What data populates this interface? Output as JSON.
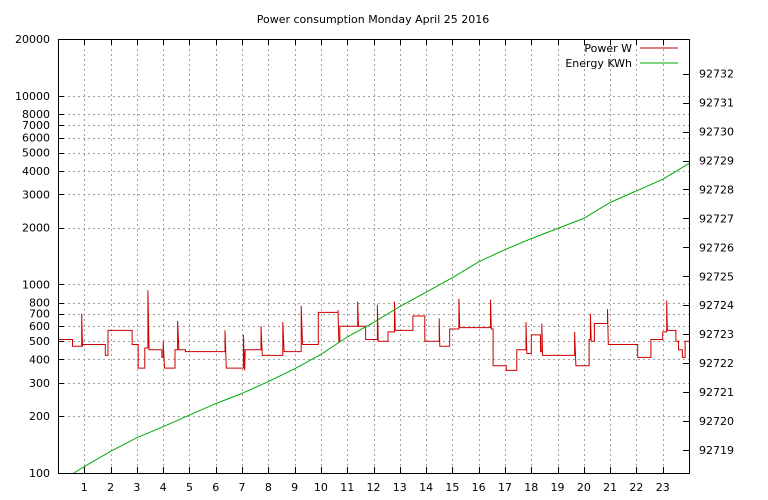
{
  "chart_data": {
    "type": "line",
    "title": "Power consumption Monday April 25 2016",
    "xlabel": "",
    "ylabel": "",
    "y2label": "",
    "grid": true,
    "legend_placement": "top-right",
    "xlim": [
      0,
      24
    ],
    "ylim": [
      100,
      20000
    ],
    "yscale": "log",
    "y2lim": [
      92718.2,
      92733.2
    ],
    "x_ticks": [
      1,
      2,
      3,
      4,
      5,
      6,
      7,
      8,
      9,
      10,
      11,
      12,
      13,
      14,
      15,
      16,
      17,
      18,
      19,
      20,
      21,
      22,
      23
    ],
    "y_ticks": [
      {
        "value": 100,
        "label": "100"
      },
      {
        "value": 200,
        "label": "200"
      },
      {
        "value": 300,
        "label": "300"
      },
      {
        "value": 400,
        "label": "400"
      },
      {
        "value": 500,
        "label": "500"
      },
      {
        "value": 600,
        "label": "600"
      },
      {
        "value": 700,
        "label": "700"
      },
      {
        "value": 800,
        "label": "800"
      },
      {
        "value": 1000,
        "label": "1000"
      },
      {
        "value": 2000,
        "label": "2000"
      },
      {
        "value": 3000,
        "label": "3000"
      },
      {
        "value": 4000,
        "label": "4000"
      },
      {
        "value": 5000,
        "label": "5000"
      },
      {
        "value": 6000,
        "label": "6000"
      },
      {
        "value": 7000,
        "label": "7000"
      },
      {
        "value": 8000,
        "label": "8000"
      },
      {
        "value": 10000,
        "label": "10000"
      },
      {
        "value": 20000,
        "label": "20000"
      }
    ],
    "y2_ticks": [
      92719,
      92720,
      92721,
      92722,
      92723,
      92724,
      92725,
      92726,
      92727,
      92728,
      92729,
      92730,
      92731,
      92732
    ],
    "series": [
      {
        "name": "Power W",
        "axis": "y",
        "color": "#cc0000",
        "points": [
          [
            0,
            510
          ],
          [
            0.55,
            510
          ],
          [
            0.55,
            470
          ],
          [
            0.9,
            470
          ],
          [
            0.9,
            700
          ],
          [
            0.93,
            470
          ],
          [
            0.95,
            480
          ],
          [
            1.8,
            480
          ],
          [
            1.8,
            420
          ],
          [
            1.9,
            420
          ],
          [
            1.9,
            570
          ],
          [
            2.82,
            570
          ],
          [
            2.82,
            480
          ],
          [
            3.05,
            480
          ],
          [
            3.05,
            360
          ],
          [
            3.3,
            360
          ],
          [
            3.3,
            460
          ],
          [
            3.42,
            460
          ],
          [
            3.42,
            930
          ],
          [
            3.46,
            450
          ],
          [
            3.95,
            450
          ],
          [
            3.95,
            410
          ],
          [
            4.0,
            410
          ],
          [
            4.0,
            500
          ],
          [
            4.05,
            360
          ],
          [
            4.45,
            360
          ],
          [
            4.45,
            450
          ],
          [
            4.55,
            450
          ],
          [
            4.55,
            640
          ],
          [
            4.6,
            450
          ],
          [
            4.85,
            450
          ],
          [
            4.85,
            440
          ],
          [
            6.35,
            440
          ],
          [
            6.35,
            570
          ],
          [
            6.4,
            360
          ],
          [
            7.05,
            360
          ],
          [
            7.05,
            540
          ],
          [
            7.1,
            350
          ],
          [
            7.12,
            450
          ],
          [
            7.72,
            450
          ],
          [
            7.72,
            600
          ],
          [
            7.77,
            420
          ],
          [
            8.55,
            420
          ],
          [
            8.55,
            630
          ],
          [
            8.6,
            440
          ],
          [
            9.25,
            440
          ],
          [
            9.25,
            770
          ],
          [
            9.3,
            480
          ],
          [
            9.9,
            480
          ],
          [
            9.9,
            710
          ],
          [
            10.65,
            710
          ],
          [
            10.65,
            730
          ],
          [
            10.68,
            500
          ],
          [
            10.72,
            500
          ],
          [
            10.72,
            600
          ],
          [
            11.4,
            600
          ],
          [
            11.4,
            810
          ],
          [
            11.43,
            600
          ],
          [
            11.7,
            600
          ],
          [
            11.7,
            510
          ],
          [
            12.15,
            510
          ],
          [
            12.15,
            780
          ],
          [
            12.18,
            500
          ],
          [
            12.55,
            500
          ],
          [
            12.55,
            560
          ],
          [
            12.8,
            560
          ],
          [
            12.8,
            810
          ],
          [
            12.83,
            570
          ],
          [
            13.5,
            570
          ],
          [
            13.5,
            680
          ],
          [
            13.95,
            680
          ],
          [
            13.95,
            500
          ],
          [
            14.5,
            500
          ],
          [
            14.5,
            660
          ],
          [
            14.52,
            470
          ],
          [
            14.9,
            470
          ],
          [
            14.9,
            580
          ],
          [
            15.25,
            580
          ],
          [
            15.25,
            840
          ],
          [
            15.28,
            590
          ],
          [
            16.45,
            590
          ],
          [
            16.45,
            830
          ],
          [
            16.48,
            580
          ],
          [
            16.55,
            580
          ],
          [
            16.55,
            370
          ],
          [
            17.05,
            370
          ],
          [
            17.05,
            350
          ],
          [
            17.45,
            350
          ],
          [
            17.45,
            450
          ],
          [
            17.8,
            450
          ],
          [
            17.8,
            630
          ],
          [
            17.83,
            430
          ],
          [
            18.0,
            430
          ],
          [
            18.0,
            540
          ],
          [
            18.35,
            540
          ],
          [
            18.35,
            440
          ],
          [
            18.4,
            440
          ],
          [
            18.4,
            620
          ],
          [
            18.43,
            420
          ],
          [
            19.65,
            420
          ],
          [
            19.65,
            560
          ],
          [
            19.7,
            370
          ],
          [
            20.2,
            370
          ],
          [
            20.2,
            510
          ],
          [
            20.25,
            510
          ],
          [
            20.25,
            700
          ],
          [
            20.28,
            500
          ],
          [
            20.4,
            500
          ],
          [
            20.4,
            620
          ],
          [
            20.9,
            620
          ],
          [
            20.9,
            740
          ],
          [
            20.93,
            480
          ],
          [
            22.05,
            480
          ],
          [
            22.05,
            410
          ],
          [
            22.55,
            410
          ],
          [
            22.55,
            510
          ],
          [
            23.0,
            510
          ],
          [
            23.0,
            560
          ],
          [
            23.15,
            560
          ],
          [
            23.15,
            820
          ],
          [
            23.18,
            570
          ],
          [
            23.5,
            570
          ],
          [
            23.5,
            500
          ],
          [
            23.6,
            500
          ],
          [
            23.6,
            450
          ],
          [
            23.75,
            450
          ],
          [
            23.75,
            410
          ],
          [
            23.85,
            410
          ],
          [
            23.85,
            500
          ],
          [
            24,
            500
          ]
        ]
      },
      {
        "name": "Energy KWh",
        "axis": "y2",
        "color": "#00aa00",
        "points": [
          [
            0.6,
            92718.2
          ],
          [
            1,
            92718.42
          ],
          [
            2,
            92718.95
          ],
          [
            3,
            92719.42
          ],
          [
            4,
            92719.8
          ],
          [
            5,
            92720.2
          ],
          [
            6,
            92720.6
          ],
          [
            7,
            92720.95
          ],
          [
            8,
            92721.36
          ],
          [
            9,
            92721.8
          ],
          [
            10,
            92722.3
          ],
          [
            11,
            92722.9
          ],
          [
            12,
            92723.4
          ],
          [
            13,
            92723.95
          ],
          [
            14,
            92724.45
          ],
          [
            15,
            92724.95
          ],
          [
            16,
            92725.5
          ],
          [
            17,
            92725.92
          ],
          [
            18,
            92726.3
          ],
          [
            19,
            92726.65
          ],
          [
            20,
            92727.0
          ],
          [
            21,
            92727.55
          ],
          [
            22,
            92727.95
          ],
          [
            23,
            92728.35
          ],
          [
            24,
            92728.9
          ]
        ]
      }
    ]
  }
}
